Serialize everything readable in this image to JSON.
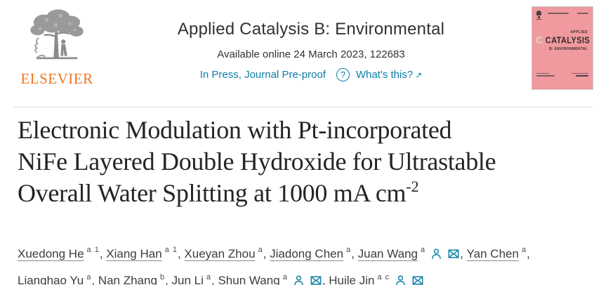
{
  "publisher": {
    "wordmark": "ELSEVIER"
  },
  "header": {
    "journal_title": "Applied Catalysis B: Environmental",
    "availability": "Available online 24 March 2023, 122683",
    "status_link": "In Press, Journal Pre-proof",
    "whats_this_link": "What's this?"
  },
  "icons": {
    "question_glyph": "?",
    "external_link_glyph": "↗"
  },
  "cover": {
    "applied": "APPLIED",
    "title": "CATALYSIS",
    "subtitle": "B: ENVIRONMENTAL",
    "logo_letter": "C",
    "bg_color": "#f0999f"
  },
  "article": {
    "title_lines": [
      "Electronic Modulation with Pt-incorporated",
      "NiFe Layered Double Hydroxide for Ultrastable",
      "Overall Water Splitting at 1000 mA cm"
    ],
    "title_superscript": "-2"
  },
  "authors": [
    {
      "name": "Xuedong He",
      "affiliations": "a 1",
      "has_profile": false,
      "has_email": false
    },
    {
      "name": "Xiang Han",
      "affiliations": "a 1",
      "has_profile": false,
      "has_email": false
    },
    {
      "name": "Xueyan Zhou",
      "affiliations": "a",
      "has_profile": false,
      "has_email": false
    },
    {
      "name": "Jiadong Chen",
      "affiliations": "a",
      "has_profile": false,
      "has_email": false
    },
    {
      "name": "Juan Wang",
      "affiliations": "a",
      "has_profile": true,
      "has_email": true
    },
    {
      "name": "Yan Chen",
      "affiliations": "a",
      "has_profile": false,
      "has_email": false
    },
    {
      "name": "Lianghao Yu",
      "affiliations": "a",
      "has_profile": false,
      "has_email": false
    },
    {
      "name": "Nan Zhang",
      "affiliations": "b",
      "has_profile": false,
      "has_email": false
    },
    {
      "name": "Jun Li",
      "affiliations": "a",
      "has_profile": false,
      "has_email": false
    },
    {
      "name": "Shun Wang",
      "affiliations": "a",
      "has_profile": true,
      "has_email": true
    },
    {
      "name": "Huile Jin",
      "affiliations": "a c",
      "has_profile": true,
      "has_email": true
    }
  ],
  "colors": {
    "accent_teal": "#0c7fa6",
    "elsevier_orange": "#f0731f",
    "cover_pink": "#f0999f",
    "title_ink": "#272327"
  }
}
